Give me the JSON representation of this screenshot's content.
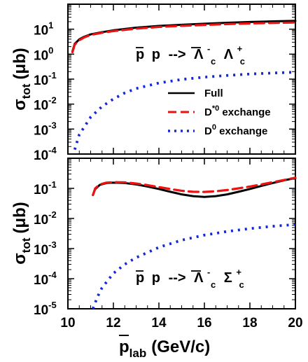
{
  "chart_data": [
    {
      "type": "line",
      "panel": "top",
      "x_domain": [
        10,
        20
      ],
      "ylim": [
        0.0001,
        100
      ],
      "yscale": "log",
      "ylabel": "σ",
      "ylabel_sub": "tot",
      "ylabel_unit": "(μb)",
      "x_ticks": [
        "10",
        "12",
        "14",
        "16",
        "18",
        "20"
      ],
      "y_ticks": [
        {
          "base": "10",
          "exp": "1"
        },
        {
          "base": "10",
          "exp": "0"
        },
        {
          "base": "10",
          "exp": "-1"
        },
        {
          "base": "10",
          "exp": "-2"
        },
        {
          "base": "10",
          "exp": "-3"
        },
        {
          "base": "10",
          "exp": "-4"
        }
      ],
      "reaction": {
        "a": "p",
        "b": "p",
        "arrow": "-->",
        "c": "Λ",
        "c_sub": "c",
        "c_sup": "-",
        "d": "Λ",
        "d_sub": "c",
        "d_sup": "+"
      },
      "legend": [
        {
          "label": "Full",
          "sup": "",
          "tail": ""
        },
        {
          "label": "D",
          "sup": "*0",
          "tail": " exchange"
        },
        {
          "label": "D",
          "sup": "0",
          "tail": " exchange"
        }
      ],
      "series": [
        {
          "name": "Full",
          "color": "#000000",
          "style": "solid",
          "x": [
            10.2,
            10.3,
            10.5,
            10.7,
            11,
            11.5,
            12,
            13,
            14,
            15,
            16,
            17,
            18,
            19,
            20
          ],
          "y": [
            1.3,
            2.6,
            3.9,
            4.9,
            6.2,
            7.6,
            9.0,
            11.5,
            13.5,
            15.0,
            16.5,
            18.0,
            19.5,
            20.5,
            21.5
          ]
        },
        {
          "name": "D*0 exchange",
          "color": "#ee1111",
          "style": "dashed",
          "x": [
            10.2,
            10.3,
            10.5,
            10.7,
            11,
            11.5,
            12,
            13,
            14,
            15,
            16,
            17,
            18,
            19,
            20
          ],
          "y": [
            1.2,
            2.4,
            3.6,
            4.6,
            5.9,
            7.2,
            8.4,
            10.5,
            12.3,
            13.6,
            14.8,
            16.0,
            17.0,
            17.8,
            18.5
          ]
        },
        {
          "name": "D0 exchange",
          "color": "#1428d8",
          "style": "dotted",
          "x": [
            10.3,
            10.5,
            11,
            11.5,
            12,
            12.5,
            13,
            14,
            15,
            16,
            17,
            18,
            19,
            20
          ],
          "y": [
            0.00015,
            0.0006,
            0.003,
            0.008,
            0.016,
            0.028,
            0.042,
            0.07,
            0.097,
            0.12,
            0.14,
            0.16,
            0.175,
            0.19
          ]
        }
      ]
    },
    {
      "type": "line",
      "panel": "bottom",
      "x_domain": [
        10,
        20
      ],
      "ylim": [
        1e-05,
        1
      ],
      "yscale": "log",
      "xlabel": "p",
      "xlabel_sub": "lab",
      "xlabel_unit": "(GeV/c)",
      "ylabel": "σ",
      "ylabel_sub": "tot",
      "ylabel_unit": "(μb)",
      "x_ticks": [
        "10",
        "12",
        "14",
        "16",
        "18",
        "20"
      ],
      "y_ticks": [
        {
          "base": "10",
          "exp": "-1"
        },
        {
          "base": "10",
          "exp": "-2"
        },
        {
          "base": "10",
          "exp": "-3"
        },
        {
          "base": "10",
          "exp": "-4"
        },
        {
          "base": "10",
          "exp": "-5"
        }
      ],
      "reaction": {
        "a": "p",
        "b": "p",
        "arrow": "-->",
        "c": "Λ",
        "c_sub": "c",
        "c_sup": "-",
        "d": "Σ",
        "d_sub": "c",
        "d_sup": "+"
      },
      "series": [
        {
          "name": "Full",
          "color": "#000000",
          "style": "solid",
          "x": [
            11.1,
            11.2,
            11.4,
            11.7,
            12,
            12.5,
            13,
            13.5,
            14,
            14.5,
            15,
            15.5,
            16,
            16.5,
            17,
            17.5,
            18,
            18.5,
            19,
            19.5,
            20
          ],
          "y": [
            0.06,
            0.095,
            0.13,
            0.15,
            0.155,
            0.15,
            0.135,
            0.115,
            0.095,
            0.077,
            0.063,
            0.055,
            0.052,
            0.055,
            0.063,
            0.077,
            0.095,
            0.12,
            0.15,
            0.185,
            0.22
          ]
        },
        {
          "name": "D*0 exchange",
          "color": "#ee1111",
          "style": "dashed",
          "x": [
            11.1,
            11.2,
            11.4,
            11.7,
            12,
            12.5,
            13,
            13.5,
            14,
            14.5,
            15,
            15.5,
            16,
            16.5,
            17,
            17.5,
            18,
            18.5,
            19,
            19.5,
            20
          ],
          "y": [
            0.06,
            0.1,
            0.135,
            0.155,
            0.16,
            0.158,
            0.145,
            0.128,
            0.11,
            0.095,
            0.083,
            0.077,
            0.076,
            0.08,
            0.088,
            0.1,
            0.115,
            0.135,
            0.16,
            0.19,
            0.225
          ]
        },
        {
          "name": "D0 exchange",
          "color": "#1428d8",
          "style": "dotted",
          "x": [
            11.1,
            11.3,
            11.5,
            12,
            12.5,
            13,
            14,
            15,
            16,
            17,
            18,
            19,
            20
          ],
          "y": [
            1e-05,
            2.5e-05,
            5e-05,
            0.00015,
            0.0003,
            0.0005,
            0.0011,
            0.0019,
            0.0028,
            0.0037,
            0.0046,
            0.0055,
            0.0063
          ]
        }
      ]
    }
  ]
}
